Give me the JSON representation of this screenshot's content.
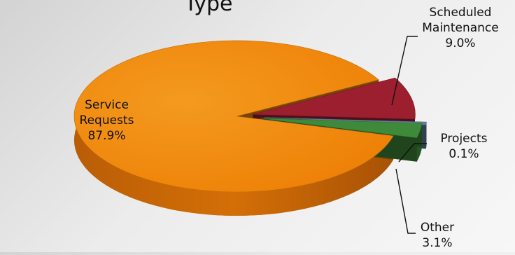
{
  "chart_data": {
    "type": "pie",
    "style": "3d-exploded",
    "title": "Type",
    "slices": [
      {
        "name": "Service Requests",
        "value": 87.9,
        "label": "87.9%",
        "color": "#f08a0c"
      },
      {
        "name": "Scheduled Maintenance",
        "value": 9.0,
        "label": "9.0%",
        "color": "#9b1f2f"
      },
      {
        "name": "Projects",
        "value": 0.1,
        "label": "0.1%",
        "color": "#5f7fa0"
      },
      {
        "name": "Other",
        "value": 3.1,
        "label": "3.1%",
        "color": "#3f8a3a"
      }
    ],
    "legend": "none",
    "labels": {
      "service_line1": "Service",
      "service_line2": "Requests",
      "scheduled_line1": "Scheduled",
      "scheduled_line2": "Maintenance"
    }
  }
}
